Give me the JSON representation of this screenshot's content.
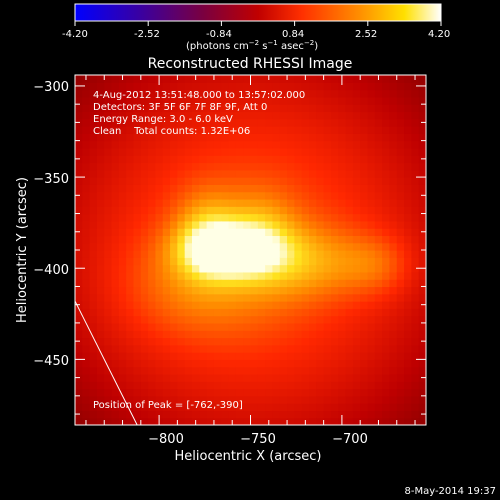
{
  "colorbar": {
    "ticks": [
      "-4.20",
      "-2.52",
      "-0.84",
      "0.84",
      "2.52",
      "4.20"
    ],
    "units_prefix": "(photons cm",
    "units_sup1": "−2",
    "units_mid": " s",
    "units_sup2": "−1",
    "units_mid2": " asec",
    "units_sup3": "−2",
    "units_suffix": ")",
    "range": [
      -4.2,
      4.2
    ],
    "colors": [
      "#0000ff",
      "#5a007a",
      "#a00000",
      "#ff3000",
      "#ff9000",
      "#ffe000",
      "#ffffff"
    ]
  },
  "title": "Reconstructed RHESSI Image",
  "info": {
    "line1": "4-Aug-2012 13:51:48.000 to 13:57:02.000",
    "line2": "Detectors: 3F 5F 6F 7F 8F 9F, Att 0",
    "line3": "Energy Range: 3.0 - 6.0 keV",
    "line4": "Clean    Total counts: 1.32E+06",
    "peak": "Position of Peak = [-762,-390]"
  },
  "footer": {
    "date": "8-May-2014 19:37"
  },
  "chart_data": {
    "type": "heatmap",
    "title": "Reconstructed RHESSI Image",
    "xlabel": "Heliocentric X (arcsec)",
    "ylabel": "Heliocentric Y (arcsec)",
    "xlim": [
      -846,
      -654
    ],
    "ylim": [
      -486,
      -294
    ],
    "x_ticks": [
      -800,
      -750,
      -700
    ],
    "y_ticks": [
      -300,
      -350,
      -400,
      -450
    ],
    "x_tick_labels": [
      "−800",
      "−750",
      "−700"
    ],
    "y_tick_labels": [
      "−300",
      "−350",
      "−400",
      "−450"
    ],
    "peak": [
      -762,
      -390
    ],
    "sources": [
      {
        "x": -762,
        "y": -390,
        "sigma_x": 18,
        "sigma_y": 10,
        "amp": 1.0
      },
      {
        "x": -774,
        "y": -380,
        "sigma_x": 12,
        "sigma_y": 16,
        "amp": 0.55
      },
      {
        "x": -745,
        "y": -380,
        "sigma_x": 14,
        "sigma_y": 16,
        "amp": 0.45
      },
      {
        "x": -720,
        "y": -396,
        "sigma_x": 24,
        "sigma_y": 14,
        "amp": 0.5
      },
      {
        "x": -680,
        "y": -398,
        "sigma_x": 14,
        "sigma_y": 12,
        "amp": 0.35
      },
      {
        "x": -780,
        "y": -410,
        "sigma_x": 30,
        "sigma_y": 20,
        "amp": 0.35
      }
    ],
    "background": {
      "x": -750,
      "y": -390,
      "sigma_x": 110,
      "sigma_y": 110,
      "amp": 0.75
    },
    "limb_line": {
      "x": [
        -846,
        -812
      ],
      "y": [
        -418,
        -486
      ]
    }
  }
}
